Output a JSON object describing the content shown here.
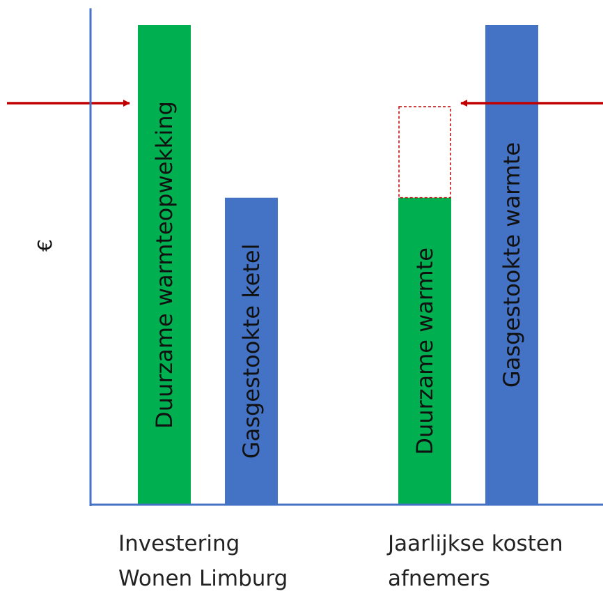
{
  "chart_data": {
    "type": "bar",
    "ylabel": "€",
    "categories": [
      {
        "lines": [
          "Investering",
          "Wonen Limburg"
        ]
      },
      {
        "lines": [
          "Jaarlijkse kosten",
          "afnemers"
        ]
      }
    ],
    "bars": [
      {
        "label": "Duurzame warmteopwekking",
        "category": 0,
        "value": 100,
        "color": "#00b050"
      },
      {
        "label": "Gasgestookte ketel",
        "category": 0,
        "value": 64,
        "color": "#4472c4"
      },
      {
        "label": "Duurzame warmte",
        "category": 1,
        "value": 64,
        "color": "#00b050"
      },
      {
        "label": "Gasgestookte warmte",
        "category": 1,
        "value": 100,
        "color": "#4472c4"
      }
    ],
    "annotations": [
      {
        "type": "dashed-box",
        "category": 1,
        "bar": 2,
        "from_value": 64,
        "to_value": 83,
        "color": "#c00000"
      },
      {
        "type": "arrow",
        "direction": "right",
        "at_value": 83,
        "color": "#c00000"
      },
      {
        "type": "arrow",
        "direction": "left",
        "at_value": 83,
        "color": "#c00000"
      }
    ],
    "ylim": [
      0,
      100
    ],
    "axis_color": "#4472c4",
    "grid": false,
    "legend": "none"
  }
}
